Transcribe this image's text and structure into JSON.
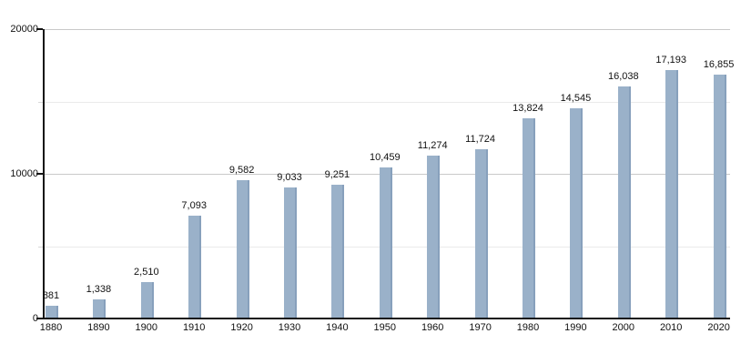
{
  "chart_data": {
    "type": "bar",
    "title": "",
    "xlabel": "",
    "ylabel": "",
    "categories": [
      "1880",
      "1890",
      "1900",
      "1910",
      "1920",
      "1930",
      "1940",
      "1950",
      "1960",
      "1970",
      "1980",
      "1990",
      "2000",
      "2010",
      "2020"
    ],
    "values": [
      881,
      1338,
      2510,
      7093,
      9582,
      9033,
      9251,
      10459,
      11274,
      11724,
      13824,
      14545,
      16038,
      17193,
      16855
    ],
    "value_labels": [
      "881",
      "1,338",
      "2,510",
      "7,093",
      "9,582",
      "9,033",
      "9,251",
      "10,459",
      "11,274",
      "11,724",
      "13,824",
      "14,545",
      "16,038",
      "17,193",
      "16,855"
    ],
    "ylim": [
      0,
      20000
    ],
    "y_major_ticks": [
      0,
      10000,
      20000
    ],
    "y_major_tick_labels": [
      "0",
      "10000",
      "20000"
    ],
    "y_minor_ticks": [
      5000,
      15000
    ],
    "grid": true,
    "legend_position": "none",
    "colors": {
      "bar_fill": "#9AB1C9",
      "bar_right_edge": "#87A0BC",
      "major_grid": "#C9C9C9",
      "minor_grid": "#EAEAEA",
      "axis": "#141414",
      "text": "#111111",
      "background": "#FFFFFF"
    }
  }
}
